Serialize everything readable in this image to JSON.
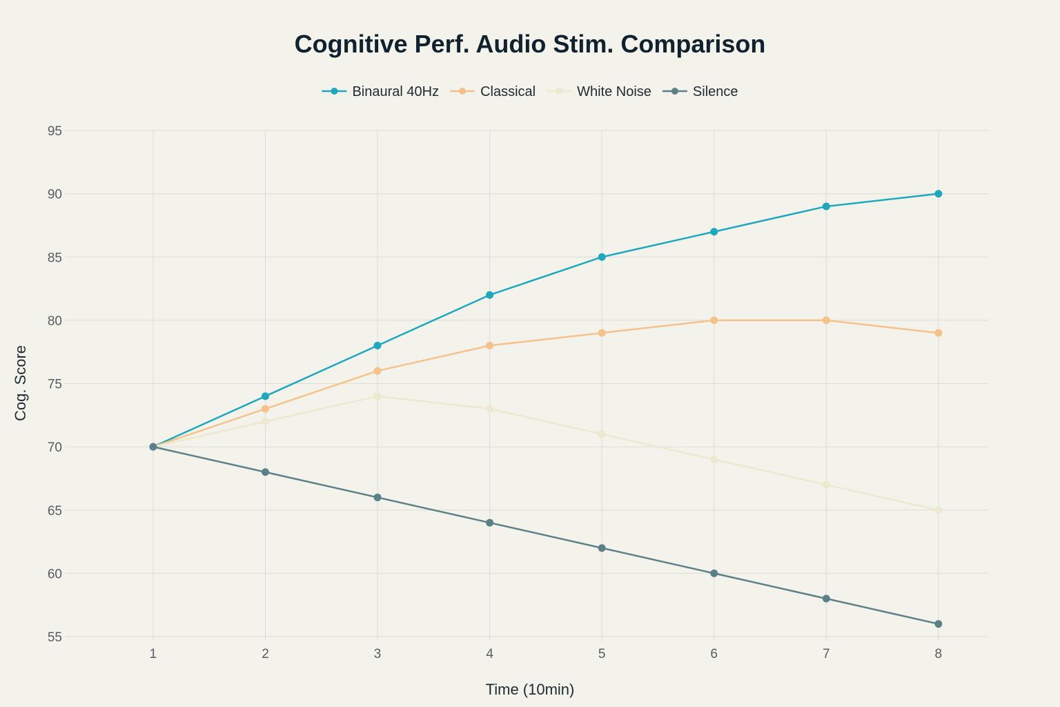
{
  "chart_data": {
    "type": "line",
    "title": "Cognitive Perf. Audio Stim. Comparison",
    "xlabel": "Time (10min)",
    "ylabel": "Cog. Score",
    "x": [
      1,
      2,
      3,
      4,
      5,
      6,
      7,
      8
    ],
    "xlim": [
      0.25,
      8.45
    ],
    "ylim": [
      55,
      95
    ],
    "yticks": [
      55,
      60,
      65,
      70,
      75,
      80,
      85,
      90,
      95
    ],
    "grid": true,
    "legend_position": "top-center",
    "series": [
      {
        "name": "Binaural 40Hz",
        "color": "#1fa7bd",
        "values": [
          70,
          74,
          78,
          82,
          85,
          87,
          89,
          90
        ]
      },
      {
        "name": "Classical",
        "color": "#f6c28b",
        "values": [
          70,
          73,
          76,
          78,
          79,
          80,
          80,
          79
        ]
      },
      {
        "name": "White Noise",
        "color": "#ece9cf",
        "values": [
          70,
          72,
          74,
          73,
          71,
          69,
          67,
          65
        ]
      },
      {
        "name": "Silence",
        "color": "#5d8088",
        "values": [
          70,
          68,
          66,
          64,
          62,
          60,
          58,
          56
        ]
      }
    ]
  }
}
